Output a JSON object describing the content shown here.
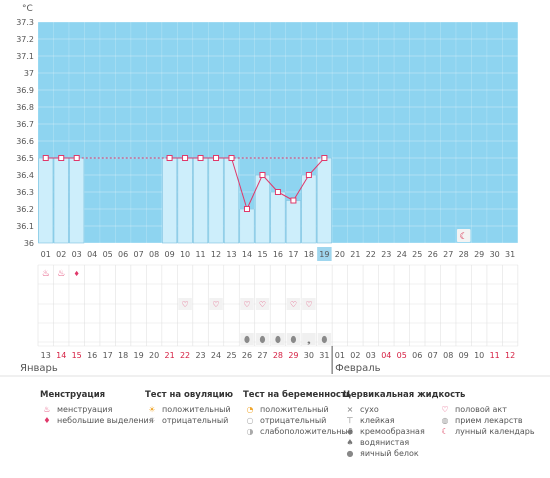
{
  "chart_data": {
    "type": "bar",
    "ylabel": "°C",
    "ylim": [
      36,
      37.3
    ],
    "y_ticks": [
      "37.3",
      "37.2",
      "37.1",
      "37",
      "36.9",
      "36.8",
      "36.7",
      "36.6",
      "36.5",
      "36.4",
      "36.3",
      "36.2",
      "36.1",
      "36"
    ],
    "x_ticks": [
      "01",
      "02",
      "03",
      "04",
      "05",
      "06",
      "07",
      "08",
      "09",
      "10",
      "11",
      "12",
      "13",
      "14",
      "15",
      "16",
      "17",
      "18",
      "19",
      "20",
      "21",
      "22",
      "23",
      "24",
      "25",
      "26",
      "27",
      "28",
      "29",
      "30",
      "31"
    ],
    "highlight_day": "19",
    "temperatures": [
      36.5,
      36.5,
      36.5,
      null,
      null,
      null,
      null,
      null,
      36.5,
      36.5,
      36.5,
      36.5,
      36.5,
      36.2,
      36.4,
      36.3,
      36.25,
      36.4,
      36.5,
      null,
      null,
      null,
      null,
      null,
      null,
      null,
      null,
      null,
      null,
      null,
      null
    ],
    "coverline": 36.5,
    "coverline_days": [
      1,
      19
    ],
    "moon_days": [
      28
    ],
    "menstruation": {
      "heavy_days": [
        1,
        2
      ],
      "light_days": [
        3
      ]
    },
    "intercourse_days": [
      10,
      12,
      14,
      15,
      17,
      18
    ],
    "cervical_white_days": [
      14,
      15,
      16,
      17,
      19
    ],
    "cervical_creamy_days": [
      18
    ],
    "dates": [
      "13",
      "14",
      "15",
      "16",
      "17",
      "18",
      "19",
      "20",
      "21",
      "22",
      "23",
      "24",
      "25",
      "26",
      "27",
      "28",
      "29",
      "30",
      "31",
      "01",
      "02",
      "03",
      "04",
      "05",
      "06",
      "07",
      "08",
      "09",
      "10",
      "11",
      "12"
    ],
    "red_date_indices": [
      1,
      2,
      8,
      9,
      15,
      16,
      22,
      23,
      29,
      30
    ],
    "months": [
      "Январь",
      "Февраль"
    ],
    "month_break_index": 19,
    "colors": {
      "band": "#8ed4f0",
      "bar": "#cdeefb",
      "bar_border": "#7cc2e0",
      "line": "#e0386a",
      "highlight": "#9fd6ee",
      "grid": "#e2e2e2",
      "red_text": "#d51e41"
    }
  },
  "legend": {
    "menstruation": {
      "title": "Менструация",
      "items": [
        {
          "icon": "drops-icon",
          "glyph": "♨",
          "label": "менструация"
        },
        {
          "icon": "drop-icon",
          "glyph": "♦",
          "label": "небольшие выделения"
        }
      ]
    },
    "ovulation": {
      "title": "Тест на овуляцию",
      "items": [
        {
          "icon": "sun-positive-icon",
          "glyph": "☀",
          "label": "положительный"
        },
        {
          "icon": "sun-negative-icon",
          "glyph": "☼",
          "label": "отрицательный"
        }
      ]
    },
    "pregnancy": {
      "title": "Тест на беременность",
      "items": [
        {
          "icon": "test-positive-icon",
          "glyph": "◔",
          "label": "положительный"
        },
        {
          "icon": "test-negative-icon",
          "glyph": "○",
          "label": "отрицательный"
        },
        {
          "icon": "test-weak-icon",
          "glyph": "◑",
          "label": "слабоположительный"
        }
      ]
    },
    "cervical": {
      "title": "Цервикальная жидкость",
      "items": [
        {
          "icon": "dry-icon",
          "glyph": "×",
          "label": "сухо"
        },
        {
          "icon": "sticky-icon",
          "glyph": "⊤",
          "label": "клейкая"
        },
        {
          "icon": "creamy-icon",
          "glyph": "◆",
          "label": "кремообразная"
        },
        {
          "icon": "watery-icon",
          "glyph": "♠",
          "label": "водянистая"
        },
        {
          "icon": "eggwhite-icon",
          "glyph": "●",
          "label": "яичный белок"
        }
      ]
    },
    "other": {
      "items": [
        {
          "icon": "heart-icon",
          "glyph": "♡",
          "label": "половой акт"
        },
        {
          "icon": "pill-icon",
          "glyph": "◍",
          "label": "прием лекарств"
        },
        {
          "icon": "moon-icon",
          "glyph": "☾",
          "label": "лунный календарь"
        }
      ]
    }
  }
}
